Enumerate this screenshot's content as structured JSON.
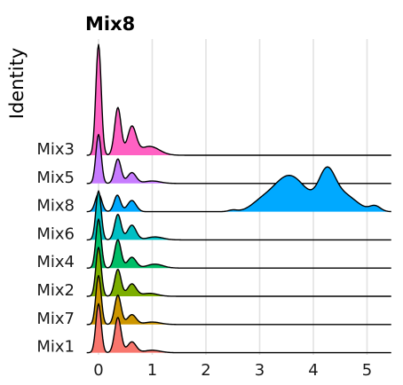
{
  "chart_data": {
    "type": "ridgeline",
    "title": "Mix8",
    "ylabel": "Identity",
    "xlabel": "",
    "x_ticks": [
      0,
      1,
      2,
      3,
      4,
      5
    ],
    "xlim": [
      -0.25,
      5.45
    ],
    "grid": "vertical",
    "bandwidth": 0.055,
    "series": [
      {
        "name": "Mix3",
        "color": "#FF61C3",
        "peak": 2.6,
        "components": [
          [
            0.0,
            0.05,
            1.0
          ],
          [
            0.36,
            0.06,
            0.43
          ],
          [
            0.62,
            0.08,
            0.25
          ],
          [
            0.95,
            0.18,
            0.08
          ]
        ]
      },
      {
        "name": "Mix5",
        "color": "#C77CFF",
        "peak": 1.15,
        "components": [
          [
            0.0,
            0.05,
            1.0
          ],
          [
            0.36,
            0.06,
            0.5
          ],
          [
            0.62,
            0.08,
            0.22
          ],
          [
            1.0,
            0.15,
            0.05
          ]
        ]
      },
      {
        "name": "Mix8",
        "color": "#00A9FF",
        "peak": 1.05,
        "components": [
          [
            0.0,
            0.06,
            0.34
          ],
          [
            0.35,
            0.06,
            0.31
          ],
          [
            0.62,
            0.08,
            0.21
          ],
          [
            2.5,
            0.08,
            0.03
          ],
          [
            3.0,
            0.18,
            0.1
          ],
          [
            3.55,
            0.32,
            0.68
          ],
          [
            4.25,
            0.15,
            0.62
          ],
          [
            4.55,
            0.25,
            0.32
          ],
          [
            5.15,
            0.1,
            0.1
          ]
        ]
      },
      {
        "name": "Mix6",
        "color": "#00BFC4",
        "peak": 1.15,
        "components": [
          [
            0.0,
            0.05,
            1.0
          ],
          [
            0.36,
            0.06,
            0.52
          ],
          [
            0.62,
            0.08,
            0.3
          ],
          [
            1.05,
            0.15,
            0.06
          ]
        ]
      },
      {
        "name": "Mix4",
        "color": "#00BE67",
        "peak": 1.15,
        "components": [
          [
            0.0,
            0.05,
            1.0
          ],
          [
            0.36,
            0.06,
            0.58
          ],
          [
            0.62,
            0.08,
            0.22
          ],
          [
            1.05,
            0.15,
            0.08
          ]
        ]
      },
      {
        "name": "Mix2",
        "color": "#7CAE00",
        "peak": 1.15,
        "components": [
          [
            0.0,
            0.05,
            1.0
          ],
          [
            0.36,
            0.06,
            0.55
          ],
          [
            0.62,
            0.08,
            0.25
          ],
          [
            0.95,
            0.15,
            0.06
          ]
        ]
      },
      {
        "name": "Mix7",
        "color": "#CD9600",
        "peak": 1.15,
        "components": [
          [
            0.0,
            0.05,
            1.0
          ],
          [
            0.36,
            0.06,
            0.6
          ],
          [
            0.62,
            0.08,
            0.2
          ],
          [
            1.0,
            0.15,
            0.05
          ]
        ]
      },
      {
        "name": "Mix1",
        "color": "#F8766D",
        "peak": 1.15,
        "components": [
          [
            0.0,
            0.05,
            1.0
          ],
          [
            0.36,
            0.06,
            0.72
          ],
          [
            0.62,
            0.08,
            0.22
          ],
          [
            1.0,
            0.15,
            0.05
          ]
        ]
      }
    ]
  }
}
